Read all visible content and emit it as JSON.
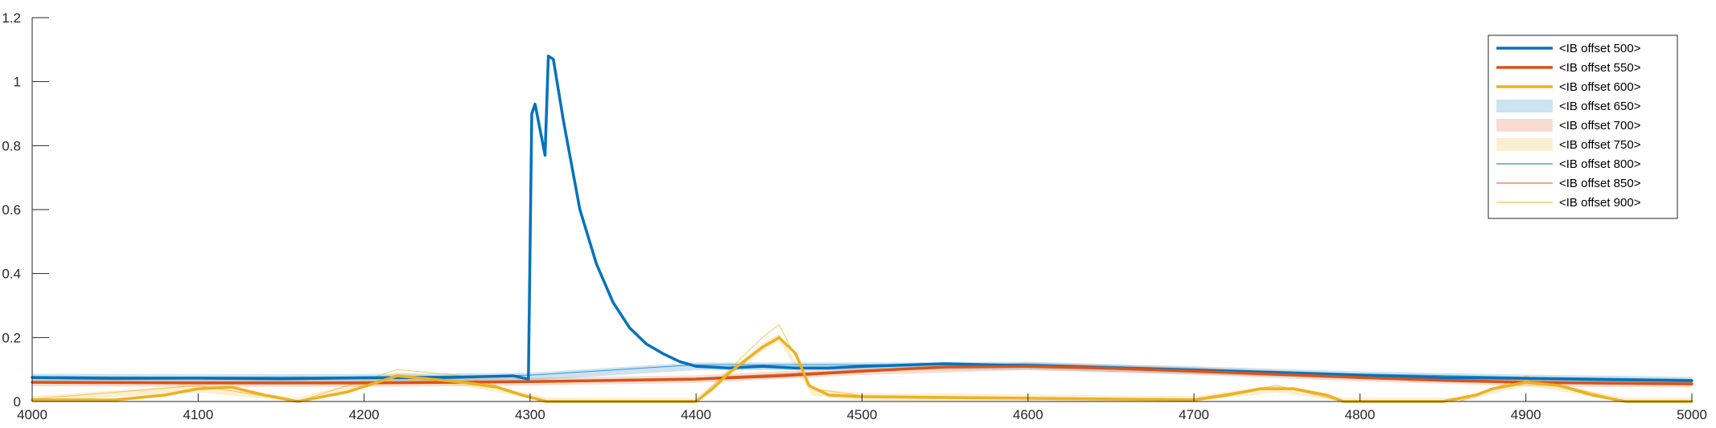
{
  "chart_data": {
    "type": "line",
    "title": "",
    "xlabel": "",
    "ylabel": "",
    "xlim": [
      4000,
      5000
    ],
    "ylim": [
      0,
      1.2
    ],
    "grid": false,
    "legend_position": "top-right",
    "x_ticks": [
      {
        "value": 4000,
        "label": "4000"
      },
      {
        "value": 4100,
        "label": "4100"
      },
      {
        "value": 4200,
        "label": "4200"
      },
      {
        "value": 4300,
        "label": "4300"
      },
      {
        "value": 4400,
        "label": "4400"
      },
      {
        "value": 4500,
        "label": "4500"
      },
      {
        "value": 4600,
        "label": "4600"
      },
      {
        "value": 4700,
        "label": "4700"
      },
      {
        "value": 4800,
        "label": "4800"
      },
      {
        "value": 4900,
        "label": "4900"
      },
      {
        "value": 5000,
        "label": "5000"
      }
    ],
    "y_ticks": [
      {
        "value": 0,
        "label": "0"
      },
      {
        "value": 0.2,
        "label": "0.2"
      },
      {
        "value": 0.4,
        "label": "0.4"
      },
      {
        "value": 0.6,
        "label": "0.6"
      },
      {
        "value": 0.8,
        "label": "0.8"
      },
      {
        "value": 1.0,
        "label": "1"
      },
      {
        "value": 1.2,
        "label": "1.2"
      }
    ],
    "series": [
      {
        "name": "<IB offset 500>",
        "color": "#0072BD",
        "style": "thick-line",
        "x": [
          4000,
          4050,
          4100,
          4150,
          4200,
          4250,
          4290,
          4299,
          4301,
          4303,
          4306,
          4309,
          4311,
          4314,
          4320,
          4330,
          4340,
          4350,
          4360,
          4370,
          4380,
          4390,
          4400,
          4420,
          4440,
          4460,
          4480,
          4500,
          4550,
          4600,
          4650,
          4700,
          4750,
          4800,
          4850,
          4900,
          4950,
          5000
        ],
        "y": [
          0.075,
          0.072,
          0.073,
          0.071,
          0.074,
          0.075,
          0.08,
          0.07,
          0.9,
          0.93,
          0.85,
          0.77,
          1.08,
          1.07,
          0.88,
          0.6,
          0.43,
          0.31,
          0.23,
          0.18,
          0.15,
          0.125,
          0.11,
          0.105,
          0.11,
          0.105,
          0.105,
          0.11,
          0.118,
          0.112,
          0.105,
          0.098,
          0.09,
          0.082,
          0.075,
          0.072,
          0.068,
          0.065
        ]
      },
      {
        "name": "<IB offset 550>",
        "color": "#D95319",
        "style": "thick-line",
        "x": [
          4000,
          4100,
          4200,
          4300,
          4350,
          4400,
          4450,
          4500,
          4550,
          4600,
          4650,
          4700,
          4750,
          4800,
          4850,
          4900,
          4950,
          5000
        ],
        "y": [
          0.06,
          0.058,
          0.058,
          0.062,
          0.066,
          0.07,
          0.08,
          0.095,
          0.108,
          0.11,
          0.104,
          0.095,
          0.085,
          0.075,
          0.066,
          0.06,
          0.057,
          0.055
        ]
      },
      {
        "name": "<IB offset 600>",
        "color": "#EDB120",
        "style": "thick-line",
        "x": [
          4000,
          4050,
          4080,
          4100,
          4120,
          4140,
          4160,
          4190,
          4220,
          4240,
          4260,
          4280,
          4295,
          4310,
          4350,
          4380,
          4400,
          4410,
          4420,
          4430,
          4440,
          4450,
          4460,
          4468,
          4480,
          4500,
          4600,
          4700,
          4720,
          4740,
          4760,
          4780,
          4790,
          4800,
          4850,
          4870,
          4880,
          4900,
          4920,
          4940,
          4960,
          5000
        ],
        "y": [
          0.005,
          0.005,
          0.02,
          0.04,
          0.045,
          0.02,
          0.0,
          0.03,
          0.08,
          0.07,
          0.06,
          0.045,
          0.02,
          0.0,
          0.0,
          0.0,
          0.0,
          0.04,
          0.09,
          0.13,
          0.17,
          0.2,
          0.15,
          0.05,
          0.02,
          0.015,
          0.01,
          0.005,
          0.02,
          0.04,
          0.04,
          0.02,
          0.0,
          0.0,
          0.0,
          0.02,
          0.04,
          0.06,
          0.05,
          0.02,
          0.0,
          0.0
        ]
      },
      {
        "name": "<IB offset 650>",
        "color": "#0072BD",
        "style": "band",
        "x": [
          4000,
          4100,
          4200,
          4300,
          4400,
          4500,
          4600,
          4700,
          4800,
          4900,
          5000
        ],
        "y": [
          0.075,
          0.073,
          0.074,
          0.078,
          0.11,
          0.11,
          0.112,
          0.098,
          0.082,
          0.072,
          0.065
        ]
      },
      {
        "name": "<IB offset 700>",
        "color": "#D95319",
        "style": "band",
        "x": [
          4000,
          4100,
          4200,
          4300,
          4400,
          4500,
          4600,
          4700,
          4800,
          4900,
          5000
        ],
        "y": [
          0.06,
          0.058,
          0.058,
          0.062,
          0.07,
          0.095,
          0.11,
          0.095,
          0.075,
          0.06,
          0.055
        ]
      },
      {
        "name": "<IB offset 750>",
        "color": "#EDB120",
        "style": "band",
        "x": [
          4000,
          4100,
          4160,
          4220,
          4260,
          4310,
          4400,
          4440,
          4450,
          4470,
          4500,
          4700,
          4750,
          4790,
          4860,
          4900,
          4960,
          5000
        ],
        "y": [
          0.005,
          0.04,
          0.0,
          0.08,
          0.06,
          0.0,
          0.0,
          0.17,
          0.2,
          0.03,
          0.015,
          0.005,
          0.04,
          0.0,
          0.0,
          0.06,
          0.0,
          0.0
        ]
      },
      {
        "name": "<IB offset 800>",
        "color": "#0072BD",
        "style": "thin-line",
        "x": [
          4000,
          4100,
          4200,
          4300,
          4400,
          4500,
          4600,
          4700,
          4800,
          4900,
          5000
        ],
        "y": [
          0.078,
          0.076,
          0.077,
          0.082,
          0.115,
          0.115,
          0.117,
          0.102,
          0.086,
          0.076,
          0.069
        ]
      },
      {
        "name": "<IB offset 850>",
        "color": "#D95319",
        "style": "thin-line",
        "x": [
          4000,
          4100,
          4200,
          4300,
          4400,
          4500,
          4600,
          4700,
          4800,
          4900,
          5000
        ],
        "y": [
          0.063,
          0.061,
          0.061,
          0.065,
          0.073,
          0.098,
          0.113,
          0.098,
          0.078,
          0.063,
          0.058
        ]
      },
      {
        "name": "<IB offset 900>",
        "color": "#EDB120",
        "style": "thin-line",
        "x": [
          4000,
          4100,
          4160,
          4220,
          4260,
          4310,
          4400,
          4440,
          4450,
          4470,
          4500,
          4700,
          4750,
          4790,
          4860,
          4900,
          4960,
          5000
        ],
        "y": [
          0.008,
          0.05,
          0.0,
          0.1,
          0.08,
          0.0,
          0.0,
          0.2,
          0.24,
          0.04,
          0.018,
          0.008,
          0.05,
          0.0,
          0.0,
          0.08,
          0.0,
          0.0
        ]
      }
    ]
  }
}
